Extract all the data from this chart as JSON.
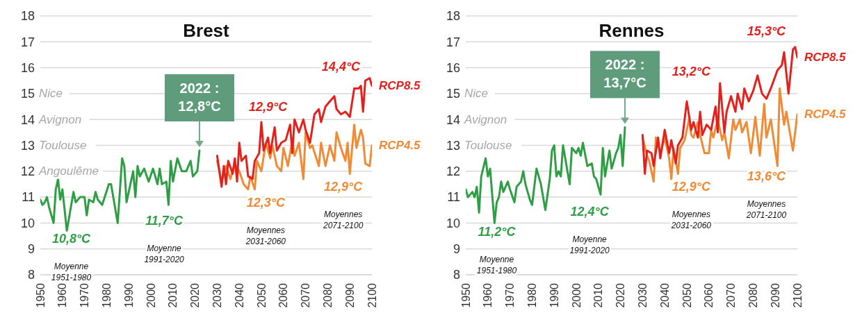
{
  "chart_data": [
    {
      "type": "line",
      "title": "Brest",
      "xlim": [
        1950,
        2100
      ],
      "xticks": [
        1950,
        1960,
        1970,
        1980,
        1990,
        2000,
        2010,
        2020,
        2030,
        2040,
        2050,
        2060,
        2070,
        2080,
        2090,
        2100
      ],
      "ylim": [
        8,
        18
      ],
      "yticks": [
        8,
        9,
        10,
        11,
        12,
        13,
        14,
        15,
        16,
        17,
        18
      ],
      "grid": "y",
      "series": [
        {
          "color": "#2e9e44",
          "x": [
            1950,
            1951,
            1952,
            1953,
            1954,
            1956,
            1957,
            1958,
            1959,
            1960,
            1962,
            1964,
            1965,
            1966,
            1968,
            1970,
            1971,
            1972,
            1974,
            1975,
            1976,
            1978,
            1981,
            1982,
            1985,
            1987,
            1988,
            1989,
            1990,
            1992,
            1993,
            1994,
            1995,
            1997,
            1999,
            2001,
            2003,
            2004,
            2005,
            2007,
            2008,
            2009,
            2010,
            2012,
            2014,
            2016,
            2018,
            2019,
            2021,
            2022
          ],
          "values": [
            10.9,
            10.7,
            10.8,
            11.0,
            10.6,
            10.0,
            11.3,
            11.7,
            10.9,
            11.3,
            9.7,
            10.7,
            11.2,
            10.8,
            11.0,
            11.0,
            10.3,
            10.9,
            10.8,
            11.2,
            10.9,
            10.7,
            11.5,
            11.5,
            10.0,
            12.5,
            12.2,
            10.8,
            11.2,
            12.0,
            11.0,
            12.2,
            11.8,
            12.1,
            11.6,
            12.1,
            11.5,
            12.1,
            11.5,
            11.6,
            10.7,
            12.4,
            11.6,
            12.5,
            12.0,
            12.0,
            12.4,
            11.8,
            12.0,
            12.8
          ]
        },
        {
          "name": "RCP8.5",
          "color": "#e3201c",
          "x": [
            2030,
            2032,
            2033,
            2034,
            2035,
            2037,
            2038,
            2039,
            2040,
            2041,
            2043,
            2044,
            2046,
            2047,
            2049,
            2050,
            2051,
            2053,
            2054,
            2056,
            2057,
            2059,
            2061,
            2063,
            2064,
            2065,
            2067,
            2069,
            2070,
            2072,
            2074,
            2076,
            2077,
            2079,
            2081,
            2083,
            2084,
            2086,
            2088,
            2090,
            2092,
            2094,
            2095,
            2096,
            2097,
            2099,
            2100
          ],
          "values": [
            12.6,
            11.4,
            12.2,
            11.5,
            12.4,
            11.9,
            12.5,
            11.6,
            13.1,
            12.4,
            12.6,
            11.8,
            11.7,
            12.4,
            12.7,
            13.9,
            12.8,
            13.3,
            12.7,
            13.7,
            12.8,
            13.1,
            13.2,
            13.8,
            12.7,
            14.0,
            13.5,
            14.0,
            13.6,
            13.1,
            14.2,
            14.4,
            13.9,
            14.5,
            14.7,
            14.9,
            14.4,
            14.2,
            14.3,
            14.1,
            15.2,
            15.2,
            15.3,
            14.3,
            15.5,
            15.6,
            15.3
          ]
        },
        {
          "name": "RCP4.5",
          "color": "#f08a34",
          "x": [
            2030,
            2032,
            2034,
            2036,
            2038,
            2040,
            2042,
            2044,
            2045,
            2047,
            2048,
            2050,
            2052,
            2054,
            2055,
            2057,
            2059,
            2060,
            2062,
            2064,
            2065,
            2067,
            2069,
            2070,
            2072,
            2073,
            2076,
            2077,
            2079,
            2081,
            2083,
            2084,
            2086,
            2088,
            2089,
            2090,
            2092,
            2093,
            2095,
            2096,
            2097,
            2099,
            2100
          ],
          "values": [
            12.4,
            11.6,
            12.2,
            11.7,
            12.3,
            12.0,
            11.5,
            11.3,
            11.8,
            11.3,
            12.4,
            12.0,
            13.1,
            12.5,
            13.0,
            12.2,
            12.0,
            12.9,
            12.2,
            13.2,
            12.6,
            13.1,
            11.7,
            13.5,
            12.9,
            13.0,
            12.2,
            13.1,
            12.2,
            13.0,
            12.4,
            13.5,
            12.9,
            12.4,
            13.1,
            11.9,
            13.8,
            12.9,
            13.6,
            13.3,
            12.3,
            12.2,
            13.0
          ]
        }
      ],
      "annotations": [
        {
          "text": "2022 : 12,8°C",
          "x": 2022,
          "y": 12.8
        },
        "10,8°C",
        "Moyenne 1951-1980",
        "11,7°C",
        "Moyenne 1991-2020",
        "12,3°C",
        "Moyennes 2031-2060",
        "12,9°C",
        "14,4°C",
        "12,9°C",
        "Moyennes 2071-2100",
        "Nice",
        "Avignon",
        "Toulouse",
        "Angoulême"
      ]
    },
    {
      "type": "line",
      "title": "Rennes",
      "xlim": [
        1950,
        2100
      ],
      "xticks": [
        1950,
        1960,
        1970,
        1980,
        1990,
        2000,
        2010,
        2020,
        2030,
        2040,
        2050,
        2060,
        2070,
        2080,
        2090,
        2100
      ],
      "ylim": [
        8,
        18
      ],
      "yticks": [
        8,
        9,
        10,
        11,
        12,
        13,
        14,
        15,
        16,
        17,
        18
      ],
      "grid": "y",
      "series": [
        {
          "color": "#2e9e44",
          "x": [
            1950,
            1951,
            1953,
            1954,
            1955,
            1956,
            1957,
            1959,
            1960,
            1961,
            1963,
            1964,
            1965,
            1966,
            1967,
            1969,
            1970,
            1972,
            1973,
            1975,
            1976,
            1977,
            1979,
            1980,
            1982,
            1984,
            1986,
            1988,
            1989,
            1990,
            1991,
            1992,
            1993,
            1994,
            1995,
            1997,
            1998,
            2000,
            2001,
            2002,
            2003,
            2005,
            2007,
            2008,
            2009,
            2011,
            2012,
            2013,
            2015,
            2016,
            2018,
            2019,
            2020,
            2021,
            2022
          ],
          "values": [
            11.3,
            11.0,
            11.2,
            11.0,
            11.4,
            10.4,
            11.8,
            12.5,
            11.8,
            12.1,
            10.0,
            10.8,
            11.0,
            11.6,
            11.2,
            11.6,
            11.3,
            10.8,
            11.4,
            11.6,
            12.0,
            11.5,
            10.9,
            10.7,
            12.1,
            11.5,
            10.5,
            11.7,
            12.8,
            13.0,
            11.8,
            12.0,
            11.8,
            13.0,
            12.5,
            11.5,
            12.9,
            12.7,
            12.9,
            12.6,
            13.1,
            12.2,
            12.3,
            11.8,
            11.7,
            11.1,
            12.9,
            11.8,
            12.8,
            12.1,
            12.7,
            12.9,
            13.4,
            12.2,
            13.7
          ]
        },
        {
          "name": "RCP8.5",
          "color": "#e3201c",
          "x": [
            2030,
            2031,
            2032,
            2034,
            2035,
            2037,
            2038,
            2040,
            2042,
            2043,
            2045,
            2046,
            2048,
            2050,
            2052,
            2053,
            2055,
            2056,
            2057,
            2059,
            2061,
            2063,
            2064,
            2065,
            2067,
            2068,
            2070,
            2072,
            2073,
            2075,
            2076,
            2078,
            2080,
            2082,
            2084,
            2086,
            2088,
            2091,
            2093,
            2094,
            2096,
            2098,
            2099,
            2100
          ],
          "values": [
            13.4,
            11.9,
            12.8,
            12.7,
            12.2,
            13.3,
            12.5,
            13.6,
            12.7,
            13.2,
            12.3,
            13.0,
            13.3,
            14.7,
            13.6,
            13.9,
            13.3,
            14.3,
            13.4,
            13.8,
            13.6,
            14.5,
            13.5,
            15.4,
            13.5,
            14.3,
            14.9,
            14.3,
            15.0,
            14.4,
            15.2,
            14.7,
            15.1,
            15.7,
            15.0,
            14.8,
            15.2,
            15.9,
            16.1,
            16.6,
            15.0,
            16.7,
            16.8,
            16.4
          ]
        },
        {
          "name": "RCP4.5",
          "color": "#f08a34",
          "x": [
            2030,
            2032,
            2033,
            2035,
            2036,
            2038,
            2040,
            2042,
            2043,
            2044,
            2046,
            2047,
            2049,
            2051,
            2052,
            2053,
            2055,
            2056,
            2058,
            2060,
            2061,
            2062,
            2064,
            2066,
            2067,
            2069,
            2071,
            2072,
            2074,
            2075,
            2077,
            2079,
            2081,
            2083,
            2085,
            2086,
            2088,
            2091,
            2092,
            2094,
            2095,
            2097,
            2098,
            2100
          ],
          "values": [
            13.3,
            12.6,
            12.4,
            11.6,
            13.3,
            12.7,
            13.3,
            12.5,
            11.7,
            12.9,
            11.9,
            12.9,
            13.2,
            14.0,
            13.4,
            13.3,
            13.9,
            13.4,
            12.7,
            12.7,
            13.6,
            13.3,
            14.0,
            13.2,
            13.5,
            12.5,
            14.0,
            13.6,
            14.0,
            13.5,
            13.9,
            12.7,
            14.1,
            12.6,
            14.6,
            13.3,
            14.0,
            12.2,
            15.2,
            13.8,
            14.3,
            13.3,
            12.8,
            14.2
          ]
        }
      ],
      "annotations": [
        {
          "text": "2022 : 13,7°C",
          "x": 2022,
          "y": 13.7
        },
        "11,2°C",
        "Moyenne 1951-1980",
        "12,4°C",
        "Moyenne 1991-2020",
        "12,9°C",
        "Moyennes 2031-2060",
        "13,2°C",
        "15,3°C",
        "13,6°C",
        "Moyennes 2071-2100",
        "Nice",
        "Avignon",
        "Toulouse"
      ]
    }
  ]
}
